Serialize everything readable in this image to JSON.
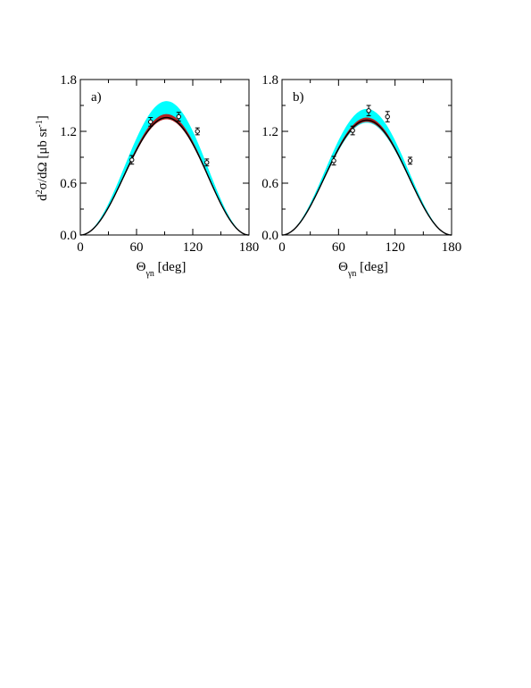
{
  "ylabel_main": "d",
  "ylabel_sup": "2",
  "ylabel_mid": "σ/dΩ [μb sr",
  "ylabel_sup2": "-1",
  "ylabel_end": "]",
  "colors": {
    "band_outer": "#00ffff",
    "band_inner": "#b22222",
    "curve": "#000000",
    "points": "#000000"
  },
  "chart_data": [
    {
      "type": "line",
      "panel_label": "a)",
      "xlabel_main": "Θ",
      "xlabel_sub": "γn",
      "xlabel_unit": " [deg]",
      "xlim": [
        0,
        180
      ],
      "ylim": [
        0.0,
        1.8
      ],
      "xticks": [
        "0",
        "60",
        "120",
        "180"
      ],
      "yticks": [
        "0.0",
        "0.6",
        "1.2",
        "1.8"
      ],
      "series": [
        {
          "role": "cyan-band",
          "peak_low": 1.35,
          "peak_high": 1.55,
          "center": 92
        },
        {
          "role": "red-band",
          "peak_low": 1.34,
          "peak_high": 1.4,
          "center": 92
        },
        {
          "role": "central-curve",
          "peak": 1.36,
          "center": 92
        }
      ],
      "points": [
        {
          "x": 55,
          "y": 0.87,
          "err": 0.05
        },
        {
          "x": 75,
          "y": 1.31,
          "err": 0.05
        },
        {
          "x": 105,
          "y": 1.37,
          "err": 0.05
        },
        {
          "x": 125,
          "y": 1.2,
          "err": 0.04
        },
        {
          "x": 135,
          "y": 0.84,
          "err": 0.04
        }
      ]
    },
    {
      "type": "line",
      "panel_label": "b)",
      "xlabel_main": "Θ",
      "xlabel_sub": "γn",
      "xlabel_unit": " [deg]",
      "xlim": [
        0,
        180
      ],
      "ylim": [
        0.0,
        1.8
      ],
      "xticks": [
        "0",
        "60",
        "120",
        "180"
      ],
      "yticks": [
        "0.0",
        "0.6",
        "1.2",
        "1.8"
      ],
      "series": [
        {
          "role": "cyan-band",
          "peak_low": 1.3,
          "peak_high": 1.46,
          "center": 90
        },
        {
          "role": "red-band",
          "peak_low": 1.31,
          "peak_high": 1.36,
          "center": 90
        },
        {
          "role": "central-curve",
          "peak": 1.33,
          "center": 90
        }
      ],
      "points": [
        {
          "x": 55,
          "y": 0.86,
          "err": 0.05
        },
        {
          "x": 75,
          "y": 1.21,
          "err": 0.05
        },
        {
          "x": 92,
          "y": 1.44,
          "err": 0.06
        },
        {
          "x": 112,
          "y": 1.37,
          "err": 0.06
        },
        {
          "x": 136,
          "y": 0.86,
          "err": 0.04
        }
      ]
    }
  ]
}
